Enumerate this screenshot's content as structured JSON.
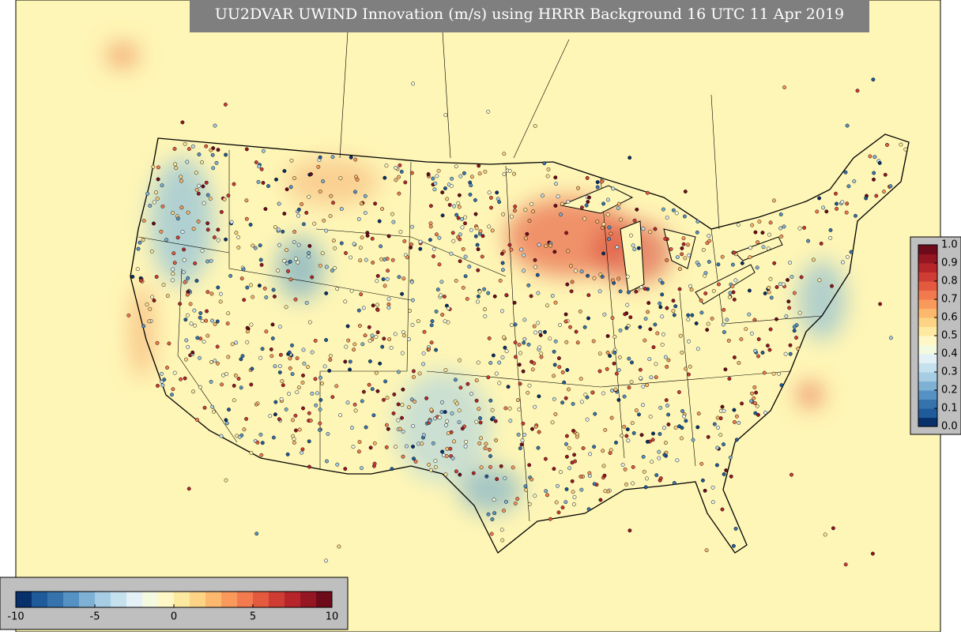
{
  "title": "UU2DVAR UWIND Innovation (m/s) using HRRR Background 16 UTC 11 Apr 2019",
  "innovation_colorbar": {
    "lim": [
      -10,
      10
    ],
    "ticks": [
      -10,
      -5,
      0,
      5,
      10
    ]
  },
  "fraction_colorbar": {
    "lim": [
      0,
      1
    ],
    "ticks": [
      {
        "value": 0,
        "label": "0.0"
      },
      {
        "value": 0.1,
        "label": "0.1"
      },
      {
        "value": 0.2,
        "label": "0.2"
      },
      {
        "value": 0.3,
        "label": "0.3"
      },
      {
        "value": 0.4,
        "label": "0.4"
      },
      {
        "value": 0.5,
        "label": "0.5"
      },
      {
        "value": 0.6,
        "label": "0.6"
      },
      {
        "value": 0.7,
        "label": "0.7"
      },
      {
        "value": 0.8,
        "label": "0.8"
      },
      {
        "value": 0.9,
        "label": "0.9"
      },
      {
        "value": 1,
        "label": "1.0"
      }
    ]
  }
}
